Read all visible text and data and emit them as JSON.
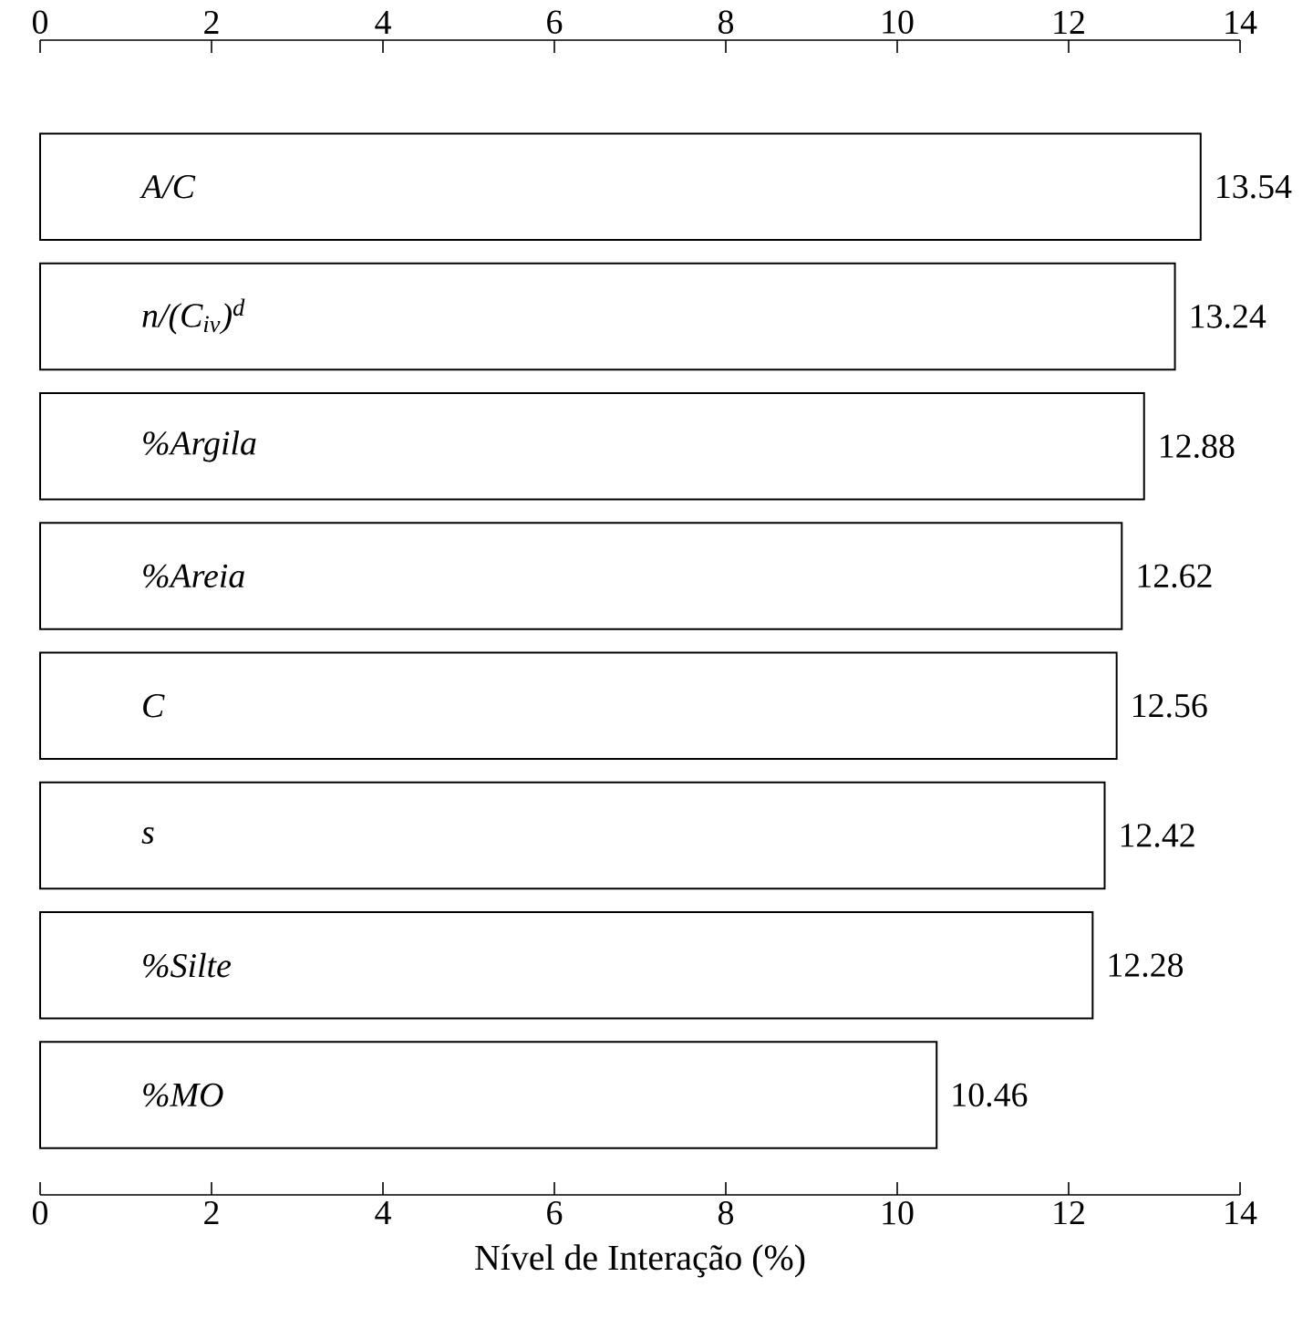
{
  "chart_data": {
    "type": "bar",
    "orientation": "horizontal",
    "xlabel": "Nível de Interação (%)",
    "categories": [
      "A/C",
      "n/(C$_{iv}$)$^{d}$",
      "%Argila",
      "%Areia",
      "C",
      "s",
      "%Silte",
      "%MO"
    ],
    "values": [
      13.54,
      13.24,
      12.88,
      12.62,
      12.56,
      12.42,
      12.28,
      10.46
    ],
    "color": "#ffffff",
    "data_labels": true,
    "xlim": [
      0,
      14
    ],
    "xticks": [
      0,
      2,
      4,
      6,
      8,
      10,
      12,
      14
    ],
    "x2lim": [
      0,
      14
    ],
    "x2ticks": [
      0,
      2,
      4,
      6,
      8,
      10,
      12,
      14
    ],
    "grid": false
  }
}
